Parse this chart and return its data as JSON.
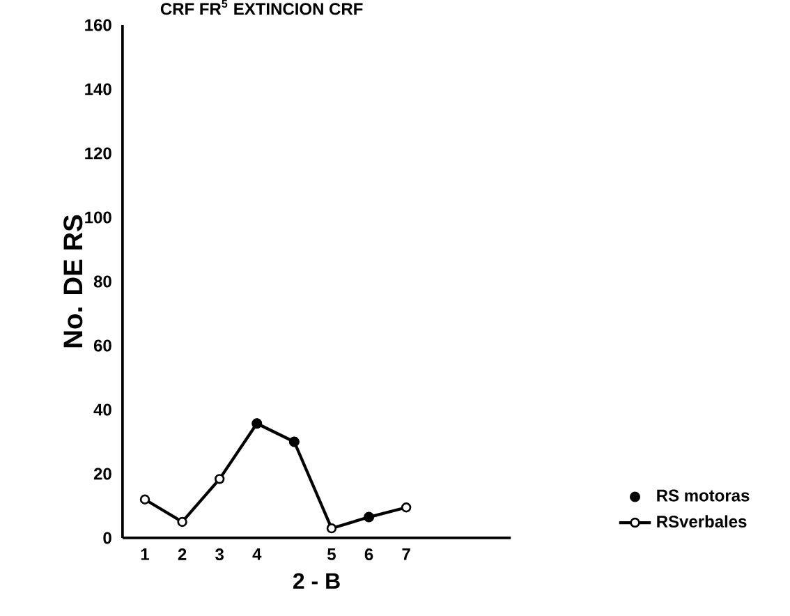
{
  "chart_data": {
    "type": "line",
    "title": "CRF   FR$^{5}$ EXTINCION CRF",
    "xlabel": "2 - B",
    "ylabel": "No.  DE  RS",
    "categories": [
      "1",
      "2",
      "3",
      "4",
      null,
      "5",
      "6",
      "7"
    ],
    "series": [
      {
        "name": "RSverbales",
        "color": "#000000",
        "marker": "circle",
        "values": [
          12,
          5,
          18.4,
          35.7,
          30,
          3,
          6.5,
          9.5
        ]
      },
      {
        "name": "RS motoras",
        "type": "scatter",
        "color": "#000000",
        "marker": "circle",
        "values": [
          null,
          null,
          null,
          35.7,
          30,
          null,
          6.5,
          null
        ]
      }
    ],
    "ylim": [
      0,
      160
    ],
    "yticks": [
      0,
      20,
      40,
      60,
      80,
      100,
      120,
      140,
      160
    ],
    "legend": "right",
    "grid": false
  }
}
